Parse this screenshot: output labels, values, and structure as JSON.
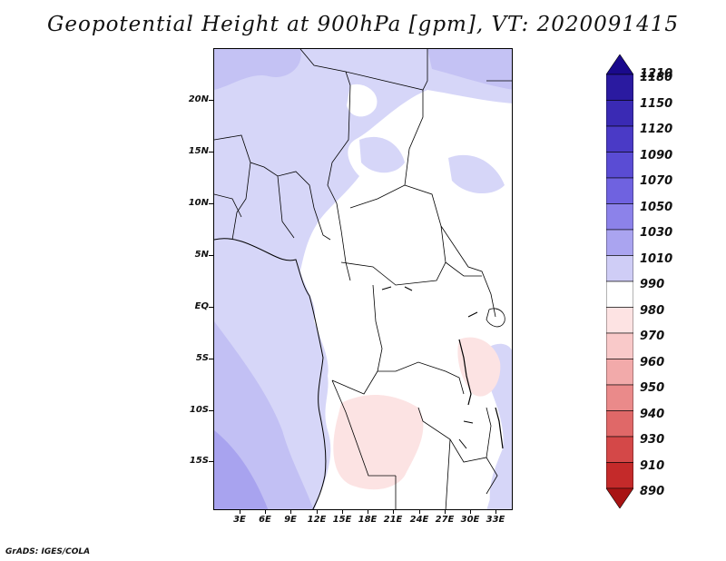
{
  "title": "Geopotential Height at 900hPa [gpm], VT: 2020091415",
  "footer": "GrADS: IGES/COLA",
  "map": {
    "lat_labels": [
      "20N",
      "15N",
      "10N",
      "5N",
      "EQ",
      "5S",
      "10S",
      "15S"
    ],
    "lon_labels": [
      "3E",
      "6E",
      "9E",
      "12E",
      "15E",
      "18E",
      "21E",
      "24E",
      "27E",
      "30E",
      "33E"
    ]
  },
  "colorbar": {
    "levels": [
      "1210",
      "1180",
      "1150",
      "1120",
      "1090",
      "1070",
      "1050",
      "1030",
      "1010",
      "990",
      "980",
      "970",
      "960",
      "950",
      "940",
      "930",
      "910",
      "890"
    ],
    "colors": [
      "#1a0a8c",
      "#2a1aa0",
      "#3a2ab4",
      "#4a3ac6",
      "#5a4cd4",
      "#6f62e0",
      "#8c82ea",
      "#aaa4f0",
      "#cfcdf6",
      "#ffffff",
      "#fde3e3",
      "#f9c9c9",
      "#f2aaaa",
      "#ea8a8a",
      "#e06868",
      "#d44848",
      "#c42a2a",
      "#a81414"
    ]
  },
  "colors": {
    "land_light": "#d6d6f8",
    "ocean_mid": "#c6c4f4",
    "ocean_deep": "#aaa6f0",
    "neutral": "#ffffff",
    "pink": "#fce6e6"
  }
}
